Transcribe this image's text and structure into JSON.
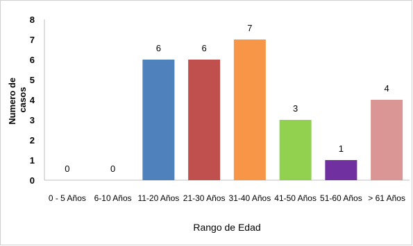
{
  "chart_data": {
    "type": "bar",
    "categories": [
      "0 - 5 Años",
      "6-10 Años",
      "11-20 Años",
      "21-30 Años",
      "31-40 Años",
      "41-50 Años",
      "51-60 Años",
      "> 61 Años"
    ],
    "values": [
      0,
      0,
      6,
      6,
      7,
      3,
      1,
      4
    ],
    "colors": [
      "#4f81bd",
      "#4f81bd",
      "#4f81bd",
      "#c0504d",
      "#f79646",
      "#92d050",
      "#7030a0",
      "#d99694"
    ],
    "xlabel": "Rango de Edad",
    "ylabel_lines": [
      "Numero de",
      "casos"
    ],
    "ylim": [
      0,
      8
    ],
    "yticks": [
      0,
      1,
      2,
      3,
      4,
      5,
      6,
      7,
      8
    ],
    "grid": false,
    "legend": "none"
  }
}
